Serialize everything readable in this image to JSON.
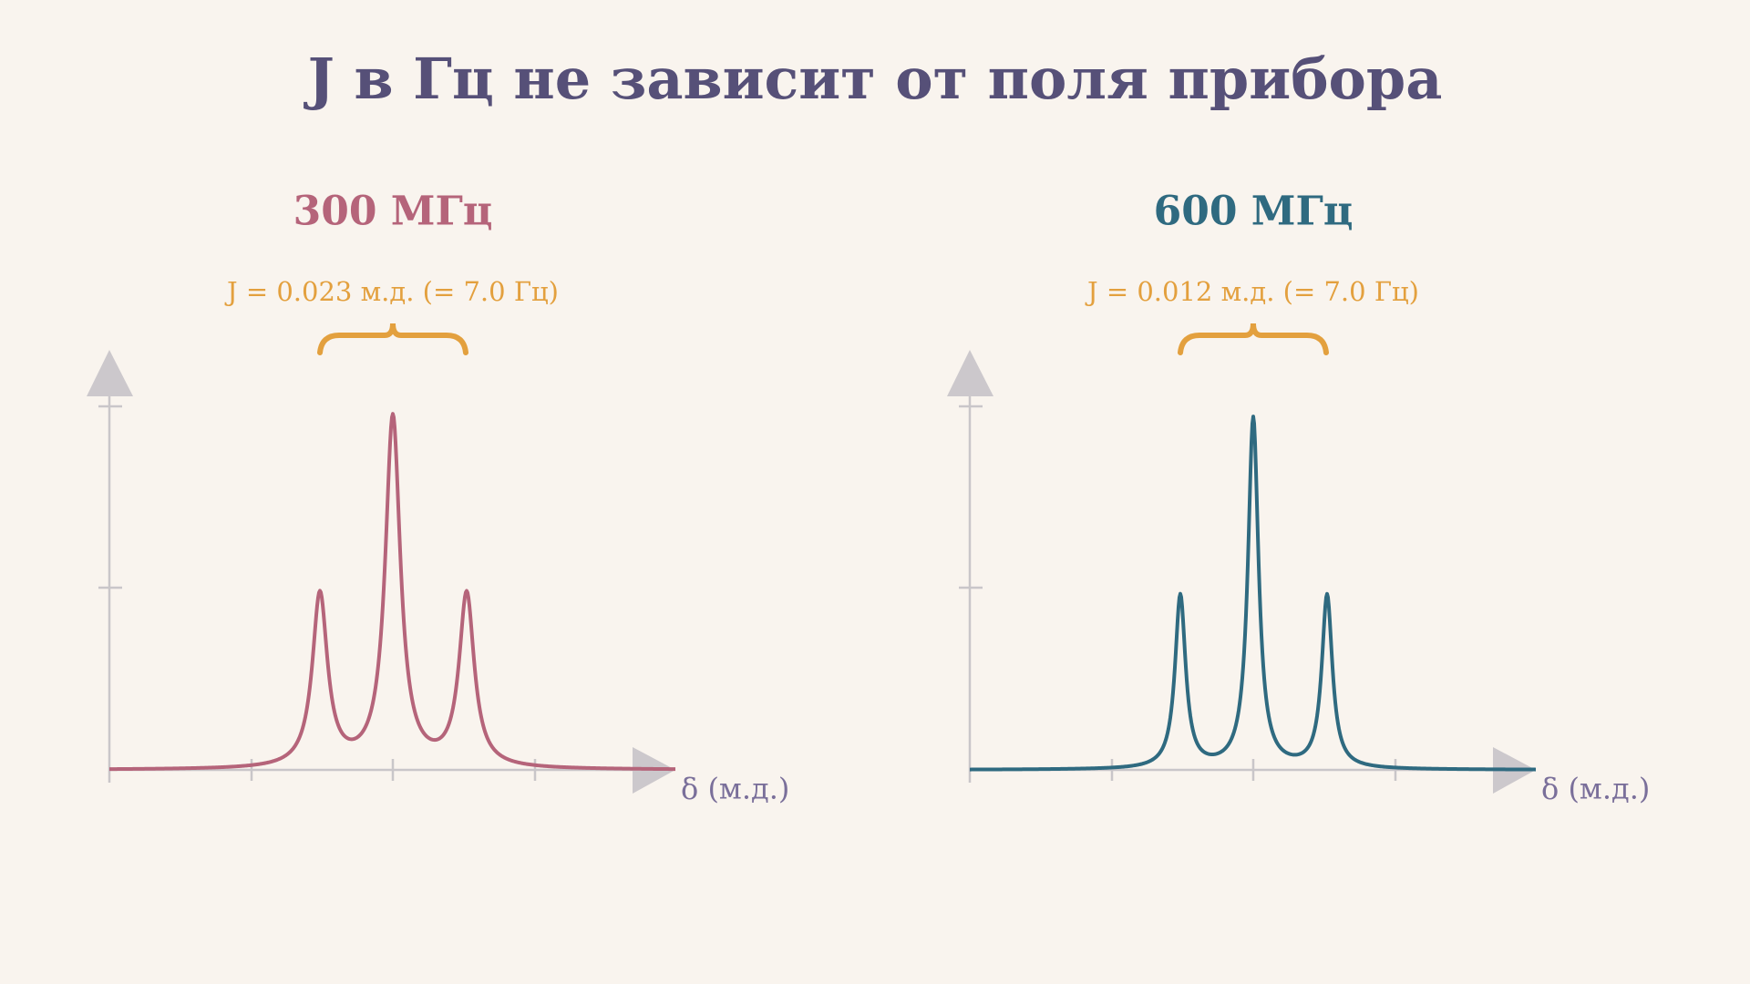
{
  "title": "J в Гц не зависит от поля прибора",
  "panels": [
    {
      "heading": "300 МГц",
      "coupling": "J = 0.023 м.д. (= 7.0 Гц)",
      "axis_label": "δ (м.д.)"
    },
    {
      "heading": "600 МГц",
      "coupling": "J = 0.012 м.д. (= 7.0 Гц)",
      "axis_label": "δ (м.д.)"
    }
  ]
}
